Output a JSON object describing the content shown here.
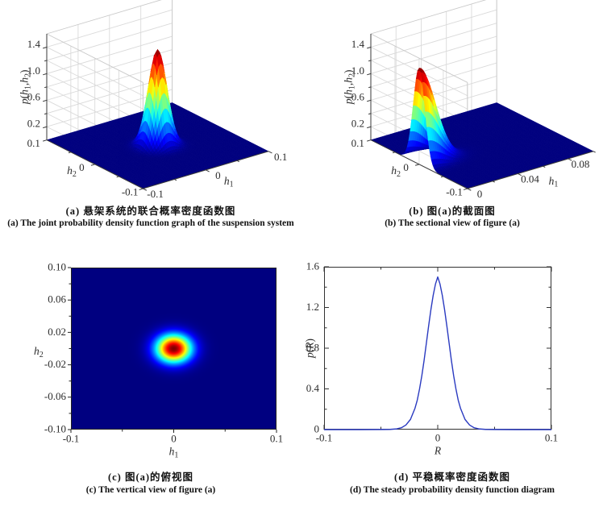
{
  "figure": {
    "background": "#ffffff"
  },
  "panels": [
    {
      "id": "a",
      "caption_cn": "(a) 悬架系统的联合概率密度函数图",
      "caption_en": "(a) The joint probability density function graph of the suspension system"
    },
    {
      "id": "b",
      "caption_cn": "(b) 图(a)的截面图",
      "caption_en": "(b) The sectional view of figure (a)"
    },
    {
      "id": "c",
      "caption_cn": "(c) 图(a)的俯视图",
      "caption_en": "(c) The vertical view of figure (a)"
    },
    {
      "id": "d",
      "caption_cn": "(d) 平稳概率密度函数图",
      "caption_en": "(d) The steady probability density function diagram"
    }
  ],
  "chart_data": [
    {
      "panel": "a",
      "type": "surface3d",
      "title": "joint probability density of suspension system",
      "colormap": "jet",
      "view": {
        "azimuth": -37.5,
        "elevation": 30
      },
      "x": {
        "label": "h1",
        "label_parts": [
          {
            "t": "h",
            "i": 1
          },
          {
            "t": "1",
            "s": 1
          }
        ],
        "range": [
          -0.1,
          0.1
        ],
        "ticks": [
          {
            "v": -0.1,
            "l": "-0.1"
          },
          {
            "v": -0.05
          },
          {
            "v": 0,
            "l": "0"
          },
          {
            "v": 0.05
          },
          {
            "v": 0.1,
            "l": "0.1"
          }
        ]
      },
      "y": {
        "label": "h2",
        "label_parts": [
          {
            "t": "h",
            "i": 1
          },
          {
            "t": "2",
            "s": 1
          }
        ],
        "range": [
          -0.1,
          0.1
        ],
        "ticks": [
          {
            "v": -0.1,
            "l": "-0.1"
          },
          {
            "v": -0.05
          },
          {
            "v": 0,
            "l": "0"
          },
          {
            "v": 0.05
          },
          {
            "v": 0.1,
            "l": "0.1"
          }
        ]
      },
      "z": {
        "label": "p(h1,h2)",
        "label_parts": [
          {
            "t": "p",
            "i": 1
          },
          {
            "t": "("
          },
          {
            "t": "h",
            "i": 1
          },
          {
            "t": "1",
            "s": 1
          },
          {
            "t": ","
          },
          {
            "t": "h",
            "i": 1
          },
          {
            "t": "2",
            "s": 1
          },
          {
            "t": ")"
          }
        ],
        "range": [
          0,
          1.6
        ],
        "ticks": [
          {
            "v": 0.2,
            "l": "0.2"
          },
          {
            "v": 0.4
          },
          {
            "v": 0.6,
            "l": "0.6"
          },
          {
            "v": 0.8
          },
          {
            "v": 1.0,
            "l": "1.0"
          },
          {
            "v": 1.2
          },
          {
            "v": 1.4,
            "l": "1.4"
          }
        ]
      },
      "surface": {
        "kind": "bivariate_gaussian",
        "peak": 1.45,
        "center": [
          0,
          0
        ],
        "sigma": [
          0.012,
          0.012
        ]
      }
    },
    {
      "panel": "b",
      "type": "surface3d",
      "title": "sectional view of (a)",
      "colormap": "jet",
      "view": {
        "azimuth": -37.5,
        "elevation": 30
      },
      "x": {
        "label": "h1",
        "label_parts": [
          {
            "t": "h",
            "i": 1
          },
          {
            "t": "1",
            "s": 1
          }
        ],
        "range": [
          0,
          0.1
        ],
        "ticks": [
          {
            "v": 0,
            "l": "0"
          },
          {
            "v": 0.02
          },
          {
            "v": 0.04,
            "l": "0.04"
          },
          {
            "v": 0.06
          },
          {
            "v": 0.08,
            "l": "0.08"
          },
          {
            "v": 0.1
          }
        ]
      },
      "y": {
        "label": "h2",
        "label_parts": [
          {
            "t": "h",
            "i": 1
          },
          {
            "t": "2",
            "s": 1
          }
        ],
        "range": [
          -0.1,
          0.1
        ],
        "ticks": [
          {
            "v": -0.1,
            "l": "-0.1"
          },
          {
            "v": -0.05
          },
          {
            "v": 0,
            "l": "0"
          },
          {
            "v": 0.05
          },
          {
            "v": 0.1,
            "l": "0.1"
          }
        ]
      },
      "z": {
        "label": "p(h1,h2)",
        "label_parts": [
          {
            "t": "p",
            "i": 1
          },
          {
            "t": "("
          },
          {
            "t": "h",
            "i": 1
          },
          {
            "t": "1",
            "s": 1
          },
          {
            "t": ","
          },
          {
            "t": "h",
            "i": 1
          },
          {
            "t": "2",
            "s": 1
          },
          {
            "t": ")"
          }
        ],
        "range": [
          0,
          1.6
        ],
        "ticks": [
          {
            "v": 0.2,
            "l": "0.2"
          },
          {
            "v": 0.4
          },
          {
            "v": 0.6,
            "l": "0.6"
          },
          {
            "v": 0.8
          },
          {
            "v": 1.0,
            "l": "1.0"
          },
          {
            "v": 1.2
          },
          {
            "v": 1.4,
            "l": "1.4"
          }
        ]
      },
      "surface": {
        "kind": "bivariate_gaussian",
        "peak": 1.45,
        "center": [
          0,
          0
        ],
        "sigma": [
          0.012,
          0.012
        ]
      }
    },
    {
      "panel": "c",
      "type": "heatmap",
      "title": "vertical (top) view of (a)",
      "colormap": "jet",
      "x": {
        "label": "h1",
        "label_parts": [
          {
            "t": "h",
            "i": 1
          },
          {
            "t": "1",
            "s": 1
          }
        ],
        "range": [
          -0.1,
          0.1
        ],
        "ticks": [
          {
            "v": -0.1,
            "l": "-0.1"
          },
          {
            "v": -0.05
          },
          {
            "v": 0,
            "l": "0"
          },
          {
            "v": 0.05
          },
          {
            "v": 0.1,
            "l": "0.1"
          }
        ]
      },
      "y": {
        "label": "h2",
        "label_parts": [
          {
            "t": "h",
            "i": 1
          },
          {
            "t": "2",
            "s": 1
          }
        ],
        "range": [
          -0.1,
          0.1
        ],
        "ticks": [
          {
            "v": 0.1,
            "l": "0.10"
          },
          {
            "v": 0.08
          },
          {
            "v": 0.06,
            "l": "0.06"
          },
          {
            "v": 0.04
          },
          {
            "v": 0.02,
            "l": "0.02"
          },
          {
            "v": 0
          },
          {
            "v": -0.02,
            "l": "-0.02"
          },
          {
            "v": -0.04
          },
          {
            "v": -0.06,
            "l": "-0.06"
          },
          {
            "v": -0.08
          },
          {
            "v": -0.1,
            "l": "-0.10"
          }
        ]
      },
      "value": {
        "kind": "bivariate_gaussian",
        "peak": 1.45,
        "center": [
          0,
          0
        ],
        "sigma": [
          0.012,
          0.012
        ],
        "color_range": [
          0,
          1.45
        ]
      }
    },
    {
      "panel": "d",
      "type": "line",
      "title": "steady probability density function",
      "color": "#2a3ac0",
      "x": {
        "label": "R",
        "label_parts": [
          {
            "t": "R",
            "i": 1
          }
        ],
        "range": [
          -0.1,
          0.1
        ],
        "ticks": [
          {
            "v": -0.1,
            "l": "-0.1"
          },
          {
            "v": -0.05
          },
          {
            "v": 0,
            "l": "0"
          },
          {
            "v": 0.05
          },
          {
            "v": 0.1,
            "l": "0.1"
          }
        ]
      },
      "y": {
        "label": "p(R)",
        "label_parts": [
          {
            "t": "p",
            "i": 1
          },
          {
            "t": "("
          },
          {
            "t": "R",
            "i": 1
          },
          {
            "t": ")"
          }
        ],
        "range": [
          0,
          1.6
        ],
        "ticks": [
          {
            "v": 0,
            "l": "0"
          },
          {
            "v": 0.2
          },
          {
            "v": 0.4,
            "l": "0.4"
          },
          {
            "v": 0.6
          },
          {
            "v": 0.8,
            "l": "0.8"
          },
          {
            "v": 1.0
          },
          {
            "v": 1.2,
            "l": "1.2"
          },
          {
            "v": 1.4
          },
          {
            "v": 1.6,
            "l": "1.6"
          }
        ]
      },
      "points": [
        [
          -0.1,
          0
        ],
        [
          -0.07,
          0
        ],
        [
          -0.05,
          0.001
        ],
        [
          -0.042,
          0.002
        ],
        [
          -0.036,
          0.007
        ],
        [
          -0.032,
          0.018
        ],
        [
          -0.028,
          0.045
        ],
        [
          -0.024,
          0.1
        ],
        [
          -0.02,
          0.21
        ],
        [
          -0.018,
          0.29
        ],
        [
          -0.016,
          0.4
        ],
        [
          -0.014,
          0.53
        ],
        [
          -0.012,
          0.68
        ],
        [
          -0.01,
          0.85
        ],
        [
          -0.008,
          1.02
        ],
        [
          -0.006,
          1.18
        ],
        [
          -0.004,
          1.32
        ],
        [
          -0.002,
          1.43
        ],
        [
          0,
          1.5
        ],
        [
          0.002,
          1.43
        ],
        [
          0.004,
          1.32
        ],
        [
          0.006,
          1.18
        ],
        [
          0.008,
          1.02
        ],
        [
          0.01,
          0.85
        ],
        [
          0.012,
          0.68
        ],
        [
          0.014,
          0.53
        ],
        [
          0.016,
          0.4
        ],
        [
          0.018,
          0.29
        ],
        [
          0.02,
          0.21
        ],
        [
          0.024,
          0.1
        ],
        [
          0.028,
          0.045
        ],
        [
          0.032,
          0.018
        ],
        [
          0.036,
          0.007
        ],
        [
          0.042,
          0.002
        ],
        [
          0.05,
          0.001
        ],
        [
          0.07,
          0
        ],
        [
          0.1,
          0
        ]
      ]
    }
  ]
}
